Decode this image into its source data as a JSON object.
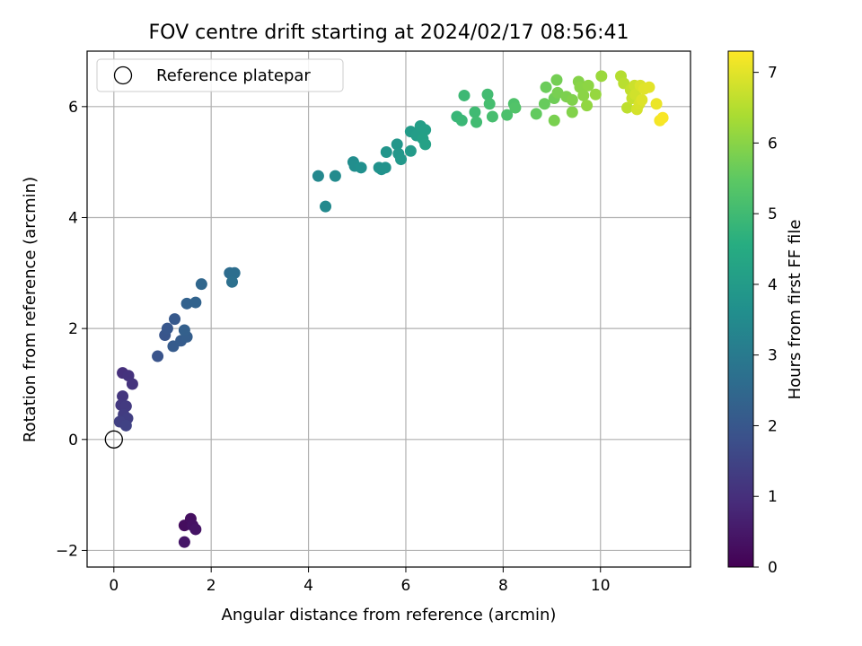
{
  "chart_data": {
    "type": "scatter",
    "title": "FOV centre drift starting at 2024/02/17 08:56:41",
    "xlabel": "Angular distance from reference (arcmin)",
    "ylabel": "Rotation from reference (arcmin)",
    "xlim": [
      -0.55,
      11.85
    ],
    "ylim": [
      -2.3,
      7.0
    ],
    "xticks": [
      0,
      2,
      4,
      6,
      8,
      10
    ],
    "yticks": [
      -2,
      0,
      2,
      4,
      6
    ],
    "grid": true,
    "legend": {
      "position": "top-left",
      "entries": [
        "Reference platepar"
      ]
    },
    "reference_point": {
      "x": 0,
      "y": 0,
      "label": "Reference platepar"
    },
    "colorbar": {
      "label": "Hours from first FF file",
      "min": 0,
      "max": 7.3,
      "ticks": [
        0,
        1,
        2,
        3,
        4,
        5,
        6,
        7
      ],
      "colormap": "viridis"
    },
    "points": [
      {
        "x": 1.45,
        "y": -1.55,
        "c": 0.25
      },
      {
        "x": 1.58,
        "y": -1.43,
        "c": 0.3
      },
      {
        "x": 1.62,
        "y": -1.55,
        "c": 0.35
      },
      {
        "x": 1.68,
        "y": -1.62,
        "c": 0.4
      },
      {
        "x": 1.45,
        "y": -1.85,
        "c": 0.45
      },
      {
        "x": 0.18,
        "y": 1.2,
        "c": 1.0
      },
      {
        "x": 0.3,
        "y": 1.15,
        "c": 1.05
      },
      {
        "x": 0.38,
        "y": 1.0,
        "c": 1.1
      },
      {
        "x": 0.18,
        "y": 0.78,
        "c": 1.15
      },
      {
        "x": 0.15,
        "y": 0.62,
        "c": 1.2
      },
      {
        "x": 0.25,
        "y": 0.6,
        "c": 1.25
      },
      {
        "x": 0.2,
        "y": 0.45,
        "c": 1.3
      },
      {
        "x": 0.28,
        "y": 0.38,
        "c": 1.35
      },
      {
        "x": 0.12,
        "y": 0.32,
        "c": 1.4
      },
      {
        "x": 0.25,
        "y": 0.25,
        "c": 1.45
      },
      {
        "x": 0.9,
        "y": 1.5,
        "c": 1.9
      },
      {
        "x": 1.05,
        "y": 1.88,
        "c": 1.95
      },
      {
        "x": 1.1,
        "y": 2.0,
        "c": 2.0
      },
      {
        "x": 1.25,
        "y": 2.17,
        "c": 2.05
      },
      {
        "x": 1.22,
        "y": 1.68,
        "c": 2.1
      },
      {
        "x": 1.38,
        "y": 1.78,
        "c": 2.15
      },
      {
        "x": 1.5,
        "y": 1.85,
        "c": 2.2
      },
      {
        "x": 1.45,
        "y": 1.97,
        "c": 2.25
      },
      {
        "x": 1.5,
        "y": 2.45,
        "c": 2.3
      },
      {
        "x": 1.68,
        "y": 2.47,
        "c": 2.35
      },
      {
        "x": 1.8,
        "y": 2.8,
        "c": 2.45
      },
      {
        "x": 2.38,
        "y": 3.0,
        "c": 2.6
      },
      {
        "x": 2.48,
        "y": 3.0,
        "c": 2.65
      },
      {
        "x": 2.43,
        "y": 2.84,
        "c": 2.7
      },
      {
        "x": 4.2,
        "y": 4.75,
        "c": 3.4
      },
      {
        "x": 4.35,
        "y": 4.2,
        "c": 3.45
      },
      {
        "x": 4.55,
        "y": 4.75,
        "c": 3.5
      },
      {
        "x": 4.92,
        "y": 5.0,
        "c": 3.55
      },
      {
        "x": 4.95,
        "y": 4.93,
        "c": 3.6
      },
      {
        "x": 5.08,
        "y": 4.9,
        "c": 3.65
      },
      {
        "x": 5.45,
        "y": 4.9,
        "c": 3.7
      },
      {
        "x": 5.5,
        "y": 4.87,
        "c": 3.72
      },
      {
        "x": 5.58,
        "y": 4.9,
        "c": 3.75
      },
      {
        "x": 5.6,
        "y": 5.18,
        "c": 3.8
      },
      {
        "x": 5.82,
        "y": 5.32,
        "c": 3.85
      },
      {
        "x": 5.85,
        "y": 5.15,
        "c": 3.88
      },
      {
        "x": 5.9,
        "y": 5.05,
        "c": 3.9
      },
      {
        "x": 6.1,
        "y": 5.2,
        "c": 3.95
      },
      {
        "x": 6.1,
        "y": 5.55,
        "c": 4.0
      },
      {
        "x": 6.22,
        "y": 5.48,
        "c": 4.05
      },
      {
        "x": 6.3,
        "y": 5.65,
        "c": 4.1
      },
      {
        "x": 6.4,
        "y": 5.58,
        "c": 4.12
      },
      {
        "x": 6.35,
        "y": 5.42,
        "c": 4.15
      },
      {
        "x": 6.4,
        "y": 5.32,
        "c": 4.2
      },
      {
        "x": 7.05,
        "y": 5.82,
        "c": 4.85
      },
      {
        "x": 7.15,
        "y": 5.75,
        "c": 4.9
      },
      {
        "x": 7.2,
        "y": 6.2,
        "c": 4.95
      },
      {
        "x": 7.42,
        "y": 5.9,
        "c": 5.0
      },
      {
        "x": 7.45,
        "y": 5.72,
        "c": 5.02
      },
      {
        "x": 7.68,
        "y": 6.22,
        "c": 5.05
      },
      {
        "x": 7.72,
        "y": 6.05,
        "c": 5.1
      },
      {
        "x": 7.78,
        "y": 5.82,
        "c": 5.12
      },
      {
        "x": 8.08,
        "y": 5.85,
        "c": 5.2
      },
      {
        "x": 8.22,
        "y": 6.05,
        "c": 5.25
      },
      {
        "x": 8.25,
        "y": 5.98,
        "c": 5.3
      },
      {
        "x": 8.68,
        "y": 5.87,
        "c": 5.55
      },
      {
        "x": 8.85,
        "y": 6.05,
        "c": 5.6
      },
      {
        "x": 8.88,
        "y": 6.35,
        "c": 5.65
      },
      {
        "x": 9.05,
        "y": 6.15,
        "c": 5.7
      },
      {
        "x": 9.1,
        "y": 6.48,
        "c": 5.75
      },
      {
        "x": 9.12,
        "y": 6.25,
        "c": 5.8
      },
      {
        "x": 9.05,
        "y": 5.75,
        "c": 5.82
      },
      {
        "x": 9.3,
        "y": 6.18,
        "c": 5.85
      },
      {
        "x": 9.42,
        "y": 6.12,
        "c": 5.9
      },
      {
        "x": 9.42,
        "y": 5.9,
        "c": 5.92
      },
      {
        "x": 9.55,
        "y": 6.45,
        "c": 5.95
      },
      {
        "x": 9.58,
        "y": 6.35,
        "c": 6.0
      },
      {
        "x": 9.65,
        "y": 6.2,
        "c": 6.02
      },
      {
        "x": 9.75,
        "y": 6.38,
        "c": 6.05
      },
      {
        "x": 9.72,
        "y": 6.02,
        "c": 6.1
      },
      {
        "x": 9.9,
        "y": 6.22,
        "c": 6.15
      },
      {
        "x": 10.02,
        "y": 6.55,
        "c": 6.2
      },
      {
        "x": 10.42,
        "y": 6.55,
        "c": 6.5
      },
      {
        "x": 10.48,
        "y": 6.42,
        "c": 6.55
      },
      {
        "x": 10.55,
        "y": 5.98,
        "c": 6.6
      },
      {
        "x": 10.62,
        "y": 6.3,
        "c": 6.65
      },
      {
        "x": 10.65,
        "y": 6.15,
        "c": 6.7
      },
      {
        "x": 10.7,
        "y": 6.38,
        "c": 6.75
      },
      {
        "x": 10.72,
        "y": 6.22,
        "c": 6.8
      },
      {
        "x": 10.75,
        "y": 5.95,
        "c": 6.85
      },
      {
        "x": 10.8,
        "y": 6.05,
        "c": 6.88
      },
      {
        "x": 10.82,
        "y": 6.38,
        "c": 6.9
      },
      {
        "x": 10.85,
        "y": 6.12,
        "c": 6.95
      },
      {
        "x": 10.9,
        "y": 6.32,
        "c": 6.98
      },
      {
        "x": 11.0,
        "y": 6.35,
        "c": 7.0
      },
      {
        "x": 11.15,
        "y": 6.05,
        "c": 7.1
      },
      {
        "x": 11.22,
        "y": 5.75,
        "c": 7.2
      },
      {
        "x": 11.28,
        "y": 5.8,
        "c": 7.25
      }
    ]
  }
}
